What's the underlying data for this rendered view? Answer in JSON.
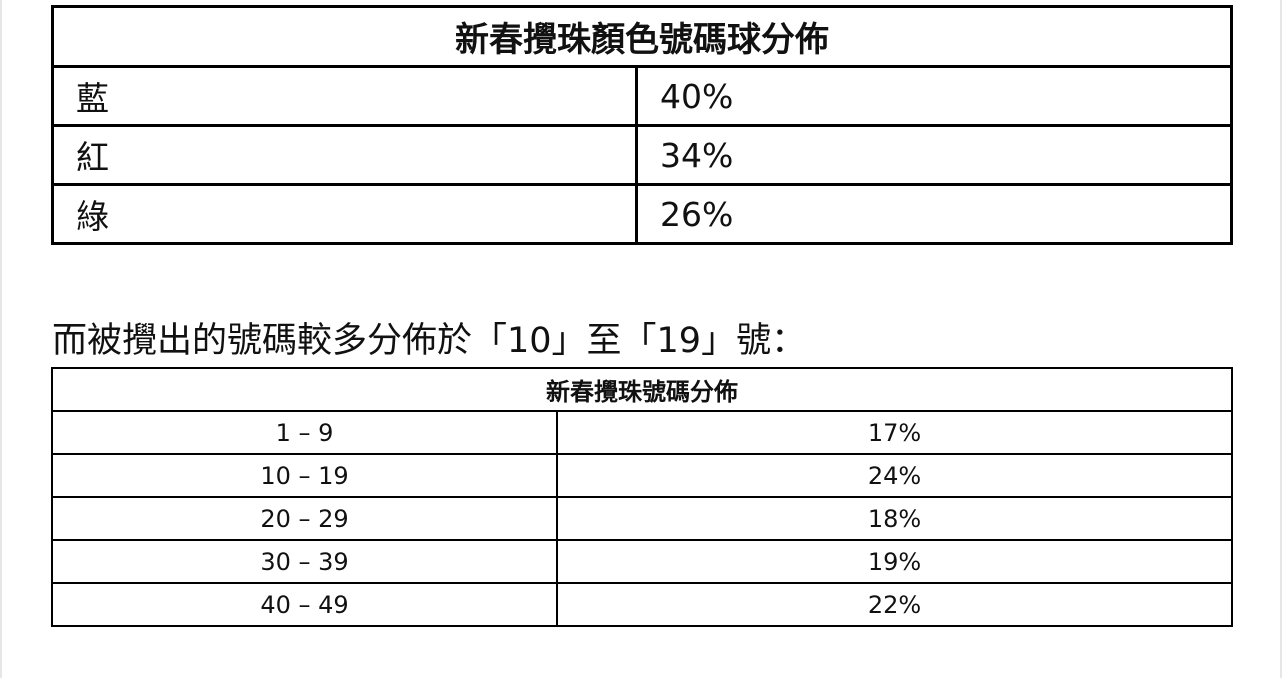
{
  "color_table": {
    "title": "新春攪珠顏色號碼球分佈",
    "rows": [
      {
        "label": "藍",
        "value": "40%"
      },
      {
        "label": "紅",
        "value": "34%"
      },
      {
        "label": "綠",
        "value": "26%"
      }
    ]
  },
  "heading": "而被攪出的號碼較多分佈於「10」至「19」號：",
  "number_table": {
    "title": "新春攪珠號碼分佈",
    "rows": [
      {
        "range": "1 – 9",
        "value": "17%"
      },
      {
        "range": "10 – 19",
        "value": "24%"
      },
      {
        "range": "20 – 29",
        "value": "18%"
      },
      {
        "range": "30 – 39",
        "value": "19%"
      },
      {
        "range": "40 – 49",
        "value": "22%"
      }
    ]
  }
}
